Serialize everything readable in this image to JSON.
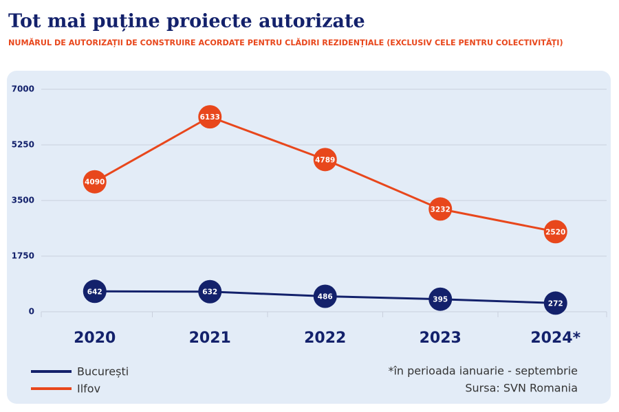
{
  "chart_data": {
    "type": "line",
    "title": "Tot mai puține proiecte autorizate",
    "subtitle": "NUMĂRUL DE AUTORIZAȚII DE CONSTRUIRE ACORDATE PENTRU CLĂDIRI REZIDENȚIALE (EXCLUSIV CELE PENTRU COLECTIVITĂȚI)",
    "categories": [
      "2020",
      "2021",
      "2022",
      "2023",
      "2024*"
    ],
    "series": [
      {
        "name": "București",
        "color": "#13216b",
        "values": [
          642,
          632,
          486,
          395,
          272
        ]
      },
      {
        "name": "Ilfov",
        "color": "#e8471c",
        "values": [
          4090,
          6133,
          4789,
          3232,
          2520
        ]
      }
    ],
    "ylim": [
      0,
      7000
    ],
    "yticks": [
      0,
      1750,
      3500,
      5250,
      7000
    ],
    "grid": true,
    "legend": "bottom-left",
    "note": "*în perioada ianuarie - septembrie",
    "source": "Sursa: SVN Romania"
  }
}
